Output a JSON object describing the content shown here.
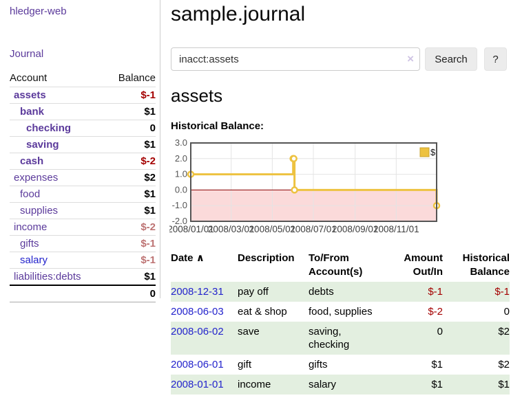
{
  "app": {
    "brand": "hledger-web",
    "nav_journal": "Journal"
  },
  "sidebar": {
    "accounts_header": {
      "account": "Account",
      "balance": "Balance"
    },
    "accounts": [
      {
        "name": "assets",
        "level": 1,
        "bold": true,
        "balance": "$-1",
        "balance_class": "neg-strong"
      },
      {
        "name": "bank",
        "level": 2,
        "bold": true,
        "balance": "$1",
        "balance_class": "pos"
      },
      {
        "name": "checking",
        "level": 3,
        "bold": true,
        "balance": "0",
        "balance_class": "pos"
      },
      {
        "name": "saving",
        "level": 3,
        "bold": true,
        "balance": "$1",
        "balance_class": "pos"
      },
      {
        "name": "cash",
        "level": 2,
        "bold": true,
        "balance": "$-2",
        "balance_class": "neg-strong"
      },
      {
        "name": "expenses",
        "level": 1,
        "bold": false,
        "balance": "$2",
        "balance_class": "pos"
      },
      {
        "name": "food",
        "level": 2,
        "bold": false,
        "balance": "$1",
        "balance_class": "pos"
      },
      {
        "name": "supplies",
        "level": 2,
        "bold": false,
        "balance": "$1",
        "balance_class": "pos"
      },
      {
        "name": "income",
        "level": 1,
        "bold": false,
        "balance": "$-2",
        "balance_class": "neg-soft"
      },
      {
        "name": "gifts",
        "level": 2,
        "bold": false,
        "balance": "$-1",
        "balance_class": "neg-soft"
      },
      {
        "name": "salary",
        "level": 2,
        "bold": false,
        "balance": "$-1",
        "balance_class": "neg-soft",
        "link_blue": true
      },
      {
        "name": "liabilities:debts",
        "level": 1,
        "bold": false,
        "balance": "$1",
        "balance_class": "pos"
      }
    ],
    "total": "0"
  },
  "header": {
    "title": "sample.journal"
  },
  "search": {
    "value": "inacct:assets",
    "clear_icon": "×",
    "button_label": "Search",
    "help_label": "?"
  },
  "account_page": {
    "title": "assets",
    "chart_label": "Historical Balance:"
  },
  "chart_data": {
    "type": "line",
    "step": true,
    "title": "Historical Balance",
    "series": [
      {
        "name": "$",
        "color": "#edc240",
        "points": [
          {
            "date": "2008-01-01",
            "day": 0,
            "value": 1
          },
          {
            "date": "2008-06-01",
            "day": 152,
            "value": 2
          },
          {
            "date": "2008-06-02",
            "day": 153,
            "value": 2
          },
          {
            "date": "2008-06-03",
            "day": 154,
            "value": 0
          },
          {
            "date": "2008-12-31",
            "day": 365,
            "value": -1
          }
        ]
      }
    ],
    "x_ticks": [
      {
        "label": "2008/01/01",
        "day": 0
      },
      {
        "label": "2008/03/01",
        "day": 60
      },
      {
        "label": "2008/05/01",
        "day": 121
      },
      {
        "label": "2008/07/01",
        "day": 182
      },
      {
        "label": "2008/09/01",
        "day": 244
      },
      {
        "label": "2008/11/01",
        "day": 305
      }
    ],
    "y_ticks": [
      "3.0",
      "2.0",
      "1.0",
      "0.0",
      "-1.0",
      "-2.0"
    ],
    "ylim": [
      -2,
      3
    ],
    "xlim_days": [
      0,
      365
    ],
    "legend": {
      "label": "$",
      "position": "top-right",
      "box_fill": "#edc240",
      "box_stroke": "#caa32e"
    },
    "grid": {
      "on": true,
      "color": "#e4e4e4",
      "border_color": "#545454",
      "negative_region_color": "#fbdada",
      "zero_line_color": "#8b0000",
      "y_label_color": "#555555",
      "x_label_color": "#3c3c3c"
    }
  },
  "register": {
    "headers": {
      "date": "Date",
      "sort_icon": "∧",
      "description": "Description",
      "accounts": "To/From Account(s)",
      "amount": "Amount Out/In",
      "balance": "Historical Balance"
    },
    "rows": [
      {
        "date": "2008-12-31",
        "description": "pay off",
        "accounts": "debts",
        "amount": "$-1",
        "balance": "$-1"
      },
      {
        "date": "2008-06-03",
        "description": "eat & shop",
        "accounts": "food, supplies",
        "amount": "$-2",
        "balance": "0"
      },
      {
        "date": "2008-06-02",
        "description": "save",
        "accounts": "saving, checking",
        "amount": "0",
        "balance": "$2"
      },
      {
        "date": "2008-06-01",
        "description": "gift",
        "accounts": "gifts",
        "amount": "$1",
        "balance": "$2"
      },
      {
        "date": "2008-01-01",
        "description": "income",
        "accounts": "salary",
        "amount": "$1",
        "balance": "$1"
      }
    ]
  },
  "colors": {
    "accent_purple": "#5b3a9b",
    "link_blue": "#2323cc",
    "negative_red": "#a40000",
    "negative_soft": "#bd7373",
    "row_green": "#e3efe0"
  }
}
